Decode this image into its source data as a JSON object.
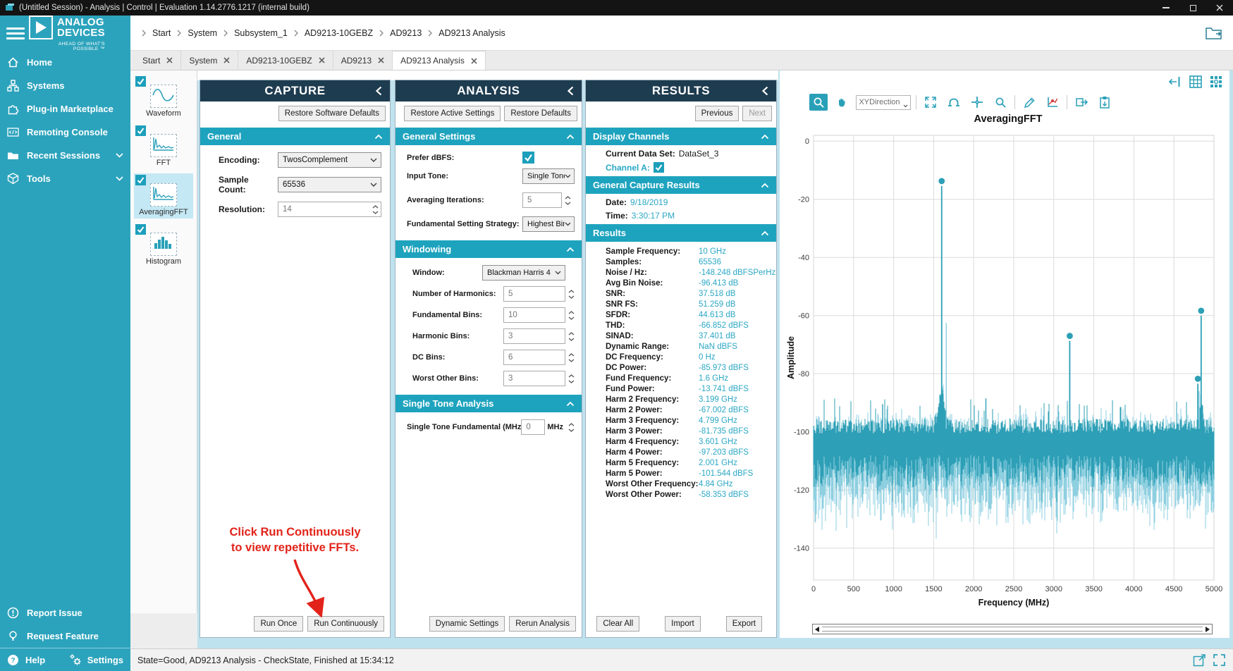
{
  "window": {
    "title": "(Untitled Session) - Analysis | Control | Evaluation 1.14.2776.1217 (internal build)"
  },
  "colors": {
    "brand_teal": "#2CA3BC",
    "panel_header_navy": "#1E3C50",
    "section_teal": "#1EA3BE",
    "value_teal": "#2AA7C4",
    "annotation_red": "#E2231A",
    "chart_line": "#2D9FB6",
    "chart_line_light": "#8ECFE0",
    "selected_item_bg": "#C4E8F4"
  },
  "logo": {
    "line1": "ANALOG",
    "line2": "DEVICES",
    "tagline": "AHEAD OF WHAT'S POSSIBLE ™"
  },
  "breadcrumb": {
    "items": [
      {
        "label": "Start"
      },
      {
        "label": "System"
      },
      {
        "label": "Subsystem_1"
      },
      {
        "label": "AD9213-10GEBZ"
      },
      {
        "label": "AD9213"
      },
      {
        "label": "AD9213 Analysis"
      }
    ]
  },
  "tabs": [
    {
      "label": "Start"
    },
    {
      "label": "System"
    },
    {
      "label": "AD9213-10GEBZ"
    },
    {
      "label": "AD9213"
    },
    {
      "label": "AD9213 Analysis",
      "active": true
    }
  ],
  "sidebar": {
    "items": [
      {
        "label": "Home",
        "icon": "home-icon"
      },
      {
        "label": "Systems",
        "icon": "systems-icon"
      },
      {
        "label": "Plug-in Marketplace",
        "icon": "plugin-icon"
      },
      {
        "label": "Remoting Console",
        "icon": "console-icon"
      },
      {
        "label": "Recent Sessions",
        "icon": "folder-icon",
        "chevron": true
      },
      {
        "label": "Tools",
        "icon": "tools-icon",
        "chevron": true
      }
    ],
    "report_issue": "Report Issue",
    "request_feature": "Request Feature",
    "help_label": "Help",
    "settings_label": "Settings"
  },
  "tool_strip": {
    "items": [
      {
        "label": "Waveform",
        "checked": true
      },
      {
        "label": "FFT",
        "checked": true
      },
      {
        "label": "AveragingFFT",
        "checked": true,
        "selected": true
      },
      {
        "label": "Histogram",
        "checked": true
      }
    ]
  },
  "capture": {
    "title": "CAPTURE",
    "restore_label": "Restore Software Defaults",
    "section": "General",
    "encoding_label": "Encoding:",
    "encoding_value": "TwosComplement",
    "sample_count_label": "Sample Count:",
    "sample_count_value": "65536",
    "resolution_label": "Resolution:",
    "resolution_value": "14",
    "annotation_line1": "Click Run Continuously",
    "annotation_line2": "to view repetitive FFTs.",
    "run_once": "Run Once",
    "run_continuously": "Run Continuously"
  },
  "analysis": {
    "title": "ANALYSIS",
    "restore_active": "Restore Active Settings",
    "restore_defaults": "Restore Defaults",
    "general_title": "General Settings",
    "prefer_dbfs_label": "Prefer dBFS:",
    "input_tone_label": "Input Tone:",
    "input_tone_value": "Single Tone",
    "averaging_label": "Averaging Iterations:",
    "averaging_value": "5",
    "strategy_label": "Fundamental Setting Strategy:",
    "strategy_value": "Highest Bin",
    "windowing_title": "Windowing",
    "window_label": "Window:",
    "window_value": "Blackman Harris 4",
    "spin_rows": [
      {
        "label": "Number of Harmonics:",
        "value": "5"
      },
      {
        "label": "Fundamental Bins:",
        "value": "10"
      },
      {
        "label": "Harmonic Bins:",
        "value": "3"
      },
      {
        "label": "DC Bins:",
        "value": "6"
      },
      {
        "label": "Worst Other Bins:",
        "value": "3"
      }
    ],
    "single_tone_title": "Single Tone Analysis",
    "single_tone_label": "Single Tone Fundamental (MHz):",
    "single_tone_value": "0",
    "single_tone_unit": "MHz",
    "dynamic_settings": "Dynamic Settings",
    "rerun_analysis": "Rerun Analysis"
  },
  "results": {
    "title": "RESULTS",
    "previous": "Previous",
    "next": "Next",
    "display_channels_title": "Display Channels",
    "current_data_set_label": "Current Data Set:",
    "current_data_set": "DataSet_3",
    "channel_label": "Channel A:",
    "general_capture_title": "General Capture Results",
    "date_label": "Date:",
    "date": "9/18/2019",
    "time_label": "Time:",
    "time": "3:30:17 PM",
    "results_title": "Results",
    "rows": [
      {
        "label": "Sample Frequency:",
        "value": "10 GHz"
      },
      {
        "label": "Samples:",
        "value": "65536"
      },
      {
        "label": "Noise / Hz:",
        "value": "-148.248 dBFSPerHz"
      },
      {
        "label": "Avg Bin Noise:",
        "value": "-96.413 dB"
      },
      {
        "label": "SNR:",
        "value": "37.518 dB"
      },
      {
        "label": "SNR FS:",
        "value": "51.259 dB"
      },
      {
        "label": "SFDR:",
        "value": "44.613 dB"
      },
      {
        "label": "THD:",
        "value": "-66.852 dBFS"
      },
      {
        "label": "SINAD:",
        "value": "37.401 dB"
      },
      {
        "label": "Dynamic Range:",
        "value": "NaN dBFS"
      },
      {
        "label": "DC Frequency:",
        "value": "0 Hz"
      },
      {
        "label": "DC Power:",
        "value": "-85.973 dBFS"
      },
      {
        "label": "Fund Frequency:",
        "value": "1.6 GHz"
      },
      {
        "label": "Fund Power:",
        "value": "-13.741 dBFS"
      },
      {
        "label": "Harm 2 Frequency:",
        "value": "3.199 GHz"
      },
      {
        "label": "Harm 2 Power:",
        "value": "-67.002 dBFS"
      },
      {
        "label": "Harm 3 Frequency:",
        "value": "4.799 GHz"
      },
      {
        "label": "Harm 3 Power:",
        "value": "-81.735 dBFS"
      },
      {
        "label": "Harm 4 Frequency:",
        "value": "3.601 GHz"
      },
      {
        "label": "Harm 4 Power:",
        "value": "-97.203 dBFS"
      },
      {
        "label": "Harm 5 Frequency:",
        "value": "2.001 GHz"
      },
      {
        "label": "Harm 5 Power:",
        "value": "-101.544 dBFS"
      },
      {
        "label": "Worst Other Frequency:",
        "value": "4.84 GHz"
      },
      {
        "label": "Worst Other Power:",
        "value": "-58.353 dBFS"
      }
    ],
    "clear_all": "Clear All",
    "import": "Import",
    "export": "Export"
  },
  "chart_toolbar": {
    "xy_direction_label": "XYDirection"
  },
  "statusbar": {
    "text": "State=Good, AD9213 Analysis - CheckState, Finished at 15:34:12"
  },
  "chart_data": {
    "type": "line",
    "title": "AveragingFFT",
    "xlabel": "Frequency (MHz)",
    "ylabel": "Amplitude",
    "xlim": [
      0,
      5000
    ],
    "ylim": [
      -151,
      2
    ],
    "x_ticks": [
      0,
      500,
      1000,
      1500,
      2000,
      2500,
      3000,
      3500,
      4000,
      4500,
      5000
    ],
    "y_ticks": [
      0,
      -20,
      -40,
      -60,
      -80,
      -100,
      -120,
      -140
    ],
    "grid": true,
    "legend": false,
    "noise_floor_dbfs": -104,
    "peaks": [
      {
        "name": "Fundamental",
        "freq_mhz": 1600,
        "power_dbfs": -13.741,
        "marker": true
      },
      {
        "name": "Harm 2",
        "freq_mhz": 3199,
        "power_dbfs": -67.002,
        "marker": true
      },
      {
        "name": "Harm 3",
        "freq_mhz": 4799,
        "power_dbfs": -81.735,
        "marker": true
      },
      {
        "name": "Harm 4",
        "freq_mhz": 3601,
        "power_dbfs": -97.203,
        "marker": false
      },
      {
        "name": "Harm 5",
        "freq_mhz": 2001,
        "power_dbfs": -101.544,
        "marker": false
      },
      {
        "name": "Worst Other",
        "freq_mhz": 4840,
        "power_dbfs": -58.353,
        "marker": true
      },
      {
        "name": "Spur near fundamental",
        "freq_mhz": 1657,
        "power_dbfs": -62.5,
        "marker": false,
        "light": true
      },
      {
        "name": "Spur",
        "freq_mhz": 2152,
        "power_dbfs": -88.5,
        "marker": false
      },
      {
        "name": "Spur",
        "freq_mhz": 862,
        "power_dbfs": -90.5,
        "marker": false
      },
      {
        "name": "Spur",
        "freq_mhz": 4815,
        "power_dbfs": -86.0,
        "marker": false,
        "light": true
      }
    ]
  }
}
